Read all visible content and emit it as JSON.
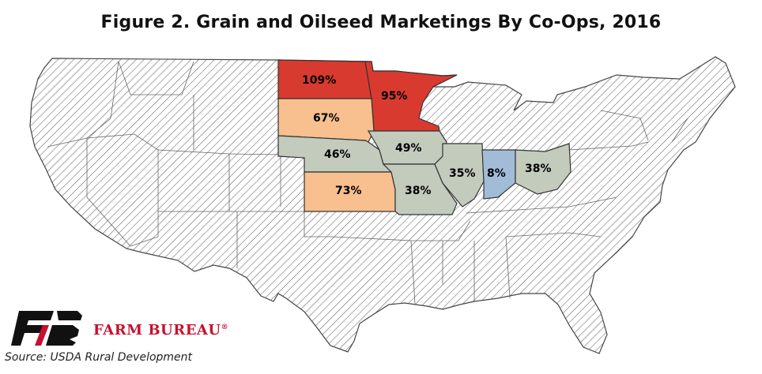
{
  "title": "Figure 2. Grain and Oilseed Marketings By Co-Ops, 2016",
  "brand": "FARM BUREAU",
  "brand_mark": "®",
  "source": "Source: USDA Rural Development",
  "colors": {
    "high": "#d93a2f",
    "mid_high": "#f8bf8f",
    "mid": "#c3cbbd",
    "low": "#a2bcd8",
    "no_data_hatch": "#555555",
    "brand_red": "#c8102e"
  },
  "chart_data": {
    "type": "map",
    "region": "Contiguous United States",
    "no_data_style": "diagonal hatching",
    "states": [
      {
        "state": "North Dakota",
        "label": "109%",
        "value": 109,
        "color_class": "high"
      },
      {
        "state": "Minnesota",
        "label": "95%",
        "value": 95,
        "color_class": "high"
      },
      {
        "state": "South Dakota",
        "label": "67%",
        "value": 67,
        "color_class": "mid_high"
      },
      {
        "state": "Kansas",
        "label": "73%",
        "value": 73,
        "color_class": "mid_high"
      },
      {
        "state": "Nebraska",
        "label": "46%",
        "value": 46,
        "color_class": "mid"
      },
      {
        "state": "Iowa",
        "label": "49%",
        "value": 49,
        "color_class": "mid"
      },
      {
        "state": "Missouri",
        "label": "38%",
        "value": 38,
        "color_class": "mid"
      },
      {
        "state": "Illinois",
        "label": "35%",
        "value": 35,
        "color_class": "mid"
      },
      {
        "state": "Ohio",
        "label": "38%",
        "value": 38,
        "color_class": "mid"
      },
      {
        "state": "Indiana",
        "label": "8%",
        "value": 8,
        "color_class": "low"
      }
    ]
  }
}
